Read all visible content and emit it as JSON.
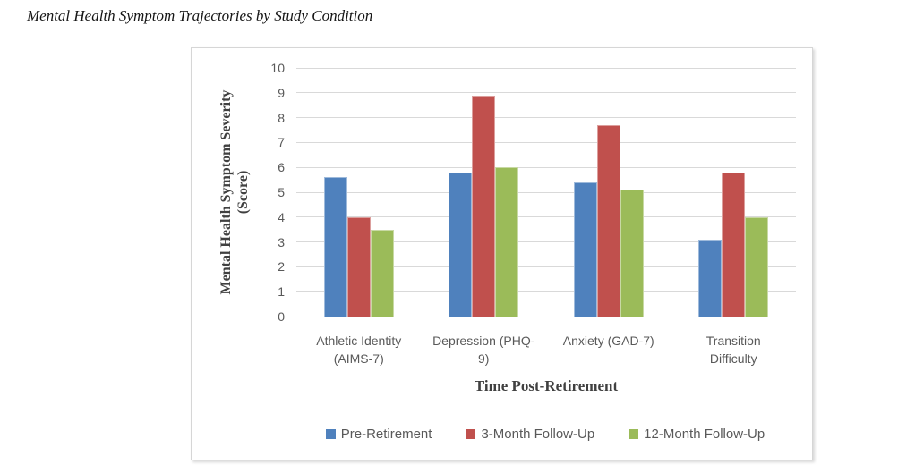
{
  "document": {
    "title": "Mental Health Symptom Trajectories by Study Condition"
  },
  "chart_data": {
    "type": "bar",
    "title": "Mental Health Symptom Trajectories by Study Condition",
    "categories": [
      "Athletic Identity (AIMS-7)",
      "Depression (PHQ-9)",
      "Anxiety (GAD-7)",
      "Transition Difficulty"
    ],
    "category_label_lines": [
      [
        "Athletic Identity",
        "(AIMS-7)"
      ],
      [
        "Depression (PHQ-",
        "9)"
      ],
      [
        "Anxiety (GAD-7)"
      ],
      [
        "Transition",
        "Difficulty"
      ]
    ],
    "series": [
      {
        "name": "Pre-Retirement",
        "color": "#4F81BD",
        "values": [
          5.6,
          5.8,
          5.4,
          3.1
        ]
      },
      {
        "name": "3-Month Follow-Up",
        "color": "#C0504D",
        "values": [
          4.0,
          8.9,
          7.7,
          5.8
        ]
      },
      {
        "name": "12-Month Follow-Up",
        "color": "#9BBB59",
        "values": [
          3.5,
          6.0,
          5.1,
          4.0
        ]
      }
    ],
    "xlabel": "Time Post-Retirement",
    "ylabel": "Mental Health Symptom Severity (Score)",
    "ylabel_lines": [
      "Mental Health Symptom Severity",
      "(Score)"
    ],
    "ylim": [
      0,
      10
    ],
    "yticks": [
      0,
      1,
      2,
      3,
      4,
      5,
      6,
      7,
      8,
      9,
      10
    ],
    "grid": true,
    "gridline_color": "#D9D9D9",
    "axis_text_color": "#595959",
    "axis_title_color": "#404040",
    "legend_position": "bottom"
  }
}
